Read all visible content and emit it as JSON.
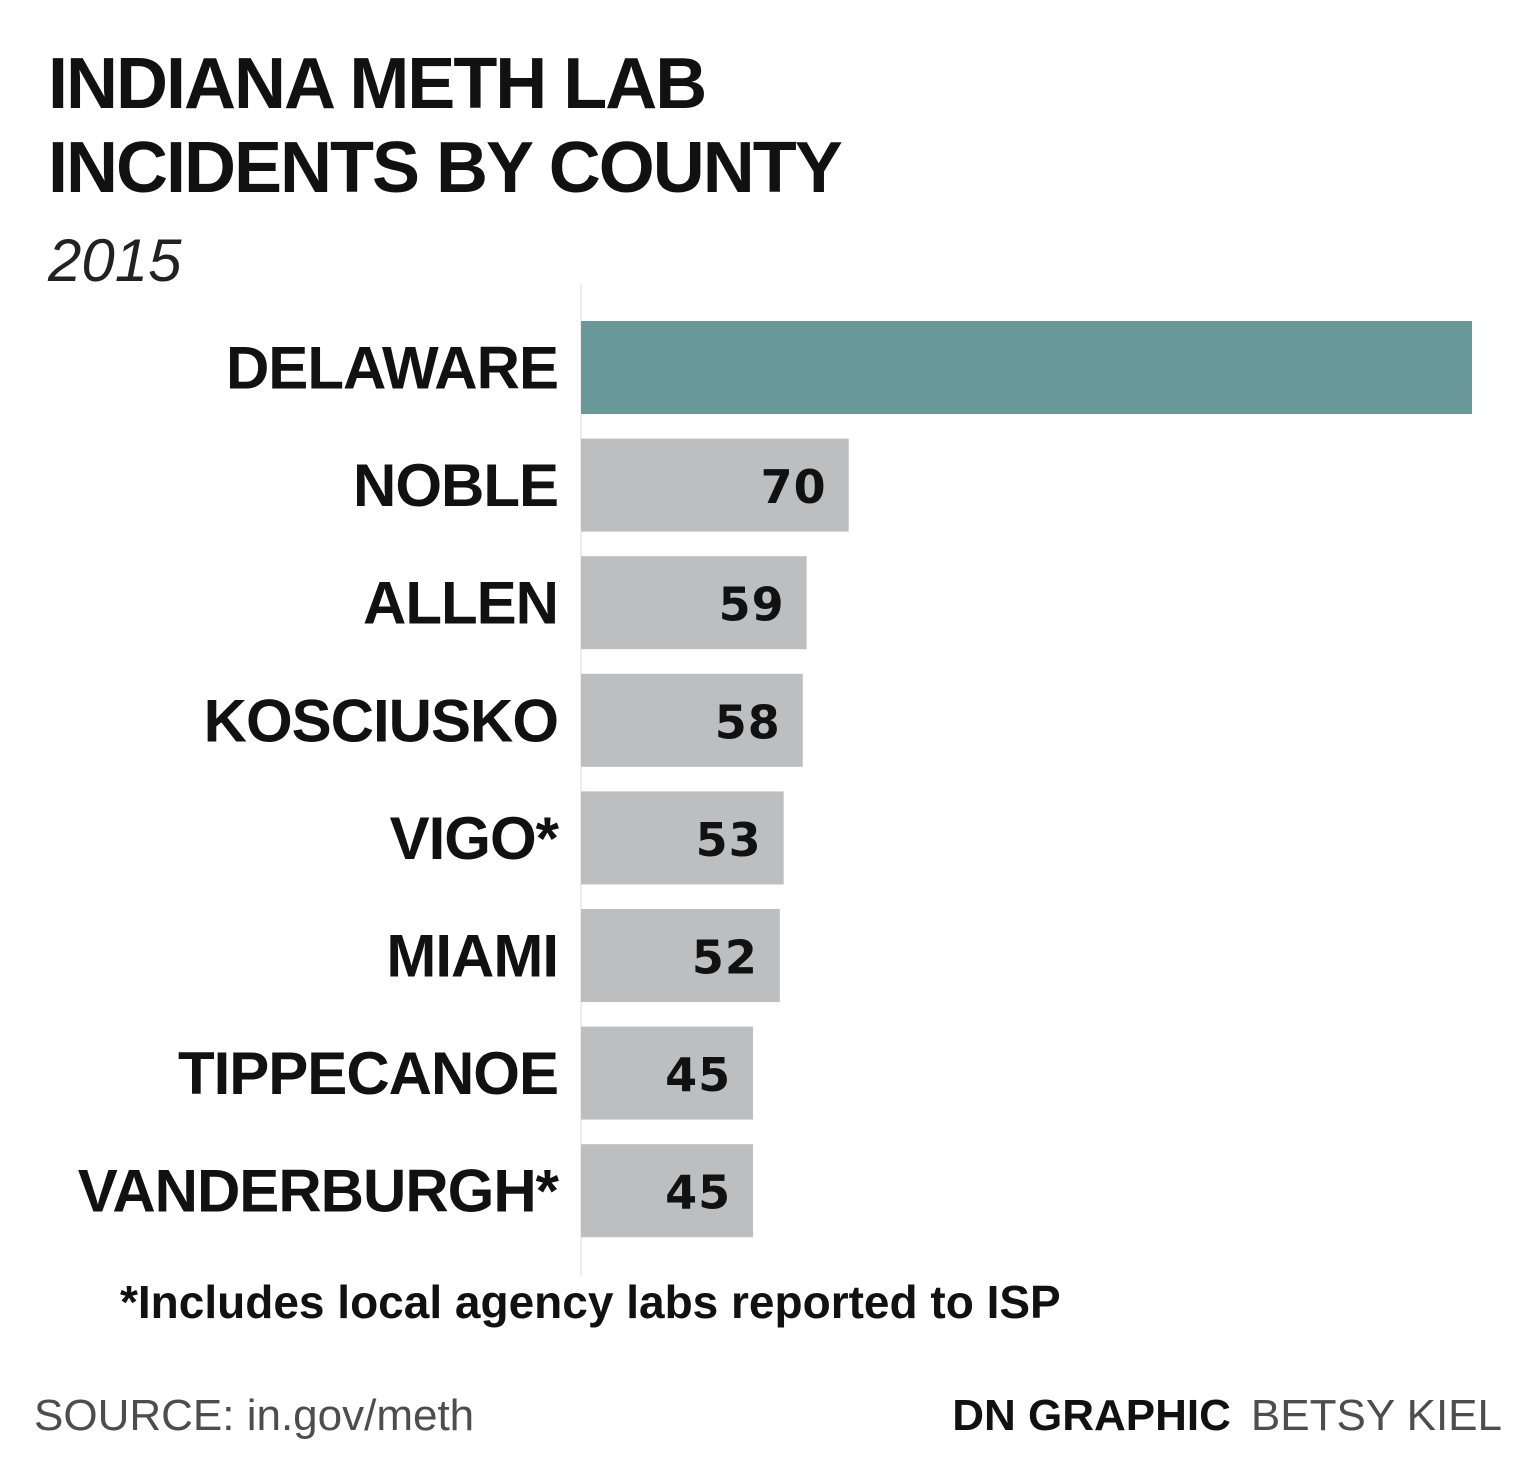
{
  "header": {
    "title_line1": "INDIANA METH LAB",
    "title_line2": "INCIDENTS BY COUNTY",
    "subtitle": "2015"
  },
  "chart_data": {
    "type": "bar",
    "orientation": "horizontal",
    "title": "INDIANA METH LAB INCIDENTS BY COUNTY",
    "subtitle": "2015",
    "categories": [
      "DELAWARE",
      "NOBLE",
      "ALLEN",
      "KOSCIUSKO",
      "VIGO*",
      "MIAMI",
      "TIPPECANOE",
      "VANDERBURGH*"
    ],
    "values": [
      233,
      70,
      59,
      58,
      53,
      52,
      45,
      45
    ],
    "value_labels": [
      "",
      "70",
      "59",
      "58",
      "53",
      "52",
      "45",
      "45"
    ],
    "highlight_category": "DELAWARE",
    "xlim": [
      0,
      233
    ],
    "grid": false,
    "colors": {
      "highlight": "#689998",
      "default": "#bdbec0",
      "axis": "#eeeeee"
    }
  },
  "footnote": "*Includes local agency labs reported to ISP",
  "footer": {
    "source": "SOURCE: in.gov/meth",
    "credit_org": "DN GRAPHIC",
    "credit_name": "BETSY KIEL"
  }
}
